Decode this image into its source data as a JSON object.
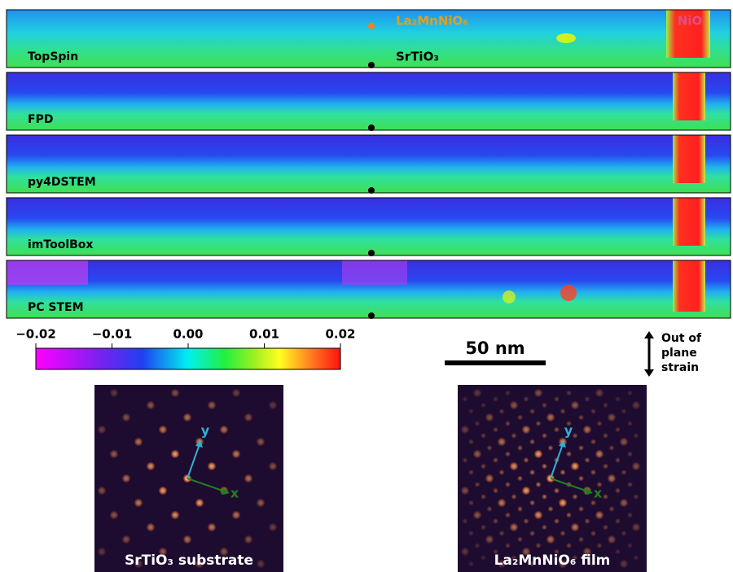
{
  "panels": [
    {
      "label": "TopSpin"
    },
    {
      "label": "FPD"
    },
    {
      "label": "py4DSTEM"
    },
    {
      "label": "imToolBox"
    },
    {
      "label": "PC STEM"
    }
  ],
  "annotations": {
    "film": "La₂MnNiO₆",
    "substrate": "SrTiO₃",
    "nio": "NiO"
  },
  "colorbar": {
    "lim": [
      -0.02,
      0.02
    ],
    "ticks": [
      {
        "value": -0.02,
        "label": "−0.02"
      },
      {
        "value": -0.01,
        "label": "−0.01"
      },
      {
        "value": 0,
        "label": "0.00"
      },
      0.01,
      0.02
    ]
  },
  "scale_bar": "50 nm",
  "strain_label": [
    "Out of",
    "plane",
    "strain"
  ],
  "diffraction": [
    {
      "caption": "SrTiO₃ substrate",
      "x_axis": "x",
      "y_axis": "y"
    },
    {
      "caption": "La₂MnNiO₆ film",
      "x_axis": "x",
      "y_axis": "y"
    }
  ]
}
